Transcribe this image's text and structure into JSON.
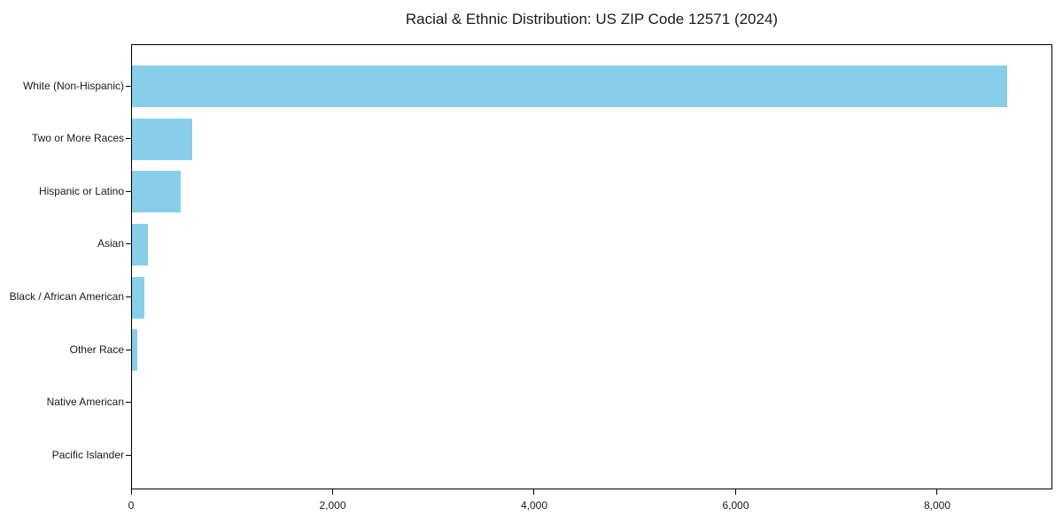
{
  "figure": {
    "background": "#ffffff"
  },
  "chart_data": {
    "type": "bar",
    "orientation": "horizontal",
    "title": "Racial & Ethnic Distribution: US ZIP Code 12571 (2024)",
    "categories": [
      "White (Non-Hispanic)",
      "Two or More Races",
      "Hispanic or Latino",
      "Asian",
      "Black / African American",
      "Other Race",
      "Native American",
      "Pacific Islander"
    ],
    "values": [
      8690,
      600,
      485,
      160,
      125,
      50,
      0,
      0
    ],
    "xlabel": "",
    "ylabel": "",
    "xlim": [
      0,
      9143
    ],
    "xticks": {
      "values": [
        0,
        2000,
        4000,
        6000,
        8000
      ],
      "labels": [
        "0",
        "2,000",
        "4,000",
        "6,000",
        "8,000"
      ]
    },
    "bar_color": "#87CEEB",
    "grid": false,
    "legend": null
  }
}
